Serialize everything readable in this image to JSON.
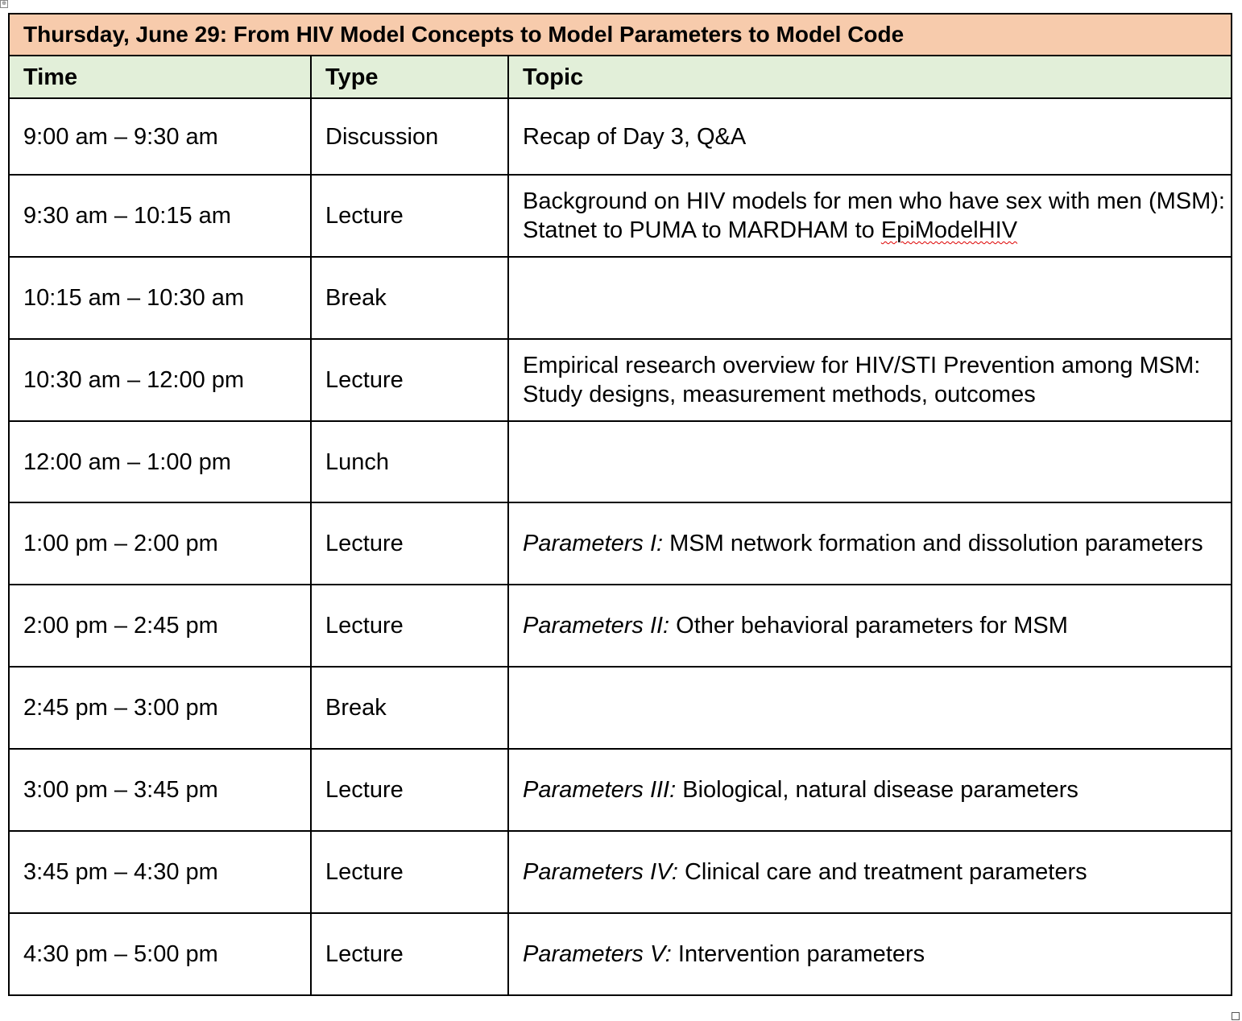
{
  "schedule": {
    "title": "Thursday, June 29: From HIV Model Concepts to Model Parameters to Model Code",
    "headers": {
      "time": "Time",
      "type": "Type",
      "topic": "Topic"
    },
    "rows": [
      {
        "time": "9:00 am – 9:30 am",
        "type": "Discussion",
        "topic_prefix": "",
        "topic": "Recap of Day 3, Q&A"
      },
      {
        "time": "9:30 am – 10:15 am",
        "type": "Lecture",
        "topic_prefix": "",
        "topic": "Background on HIV models for men who have sex with men (MSM): Statnet to PUMA to MARDHAM to ",
        "topic_flagged_word": "EpiModelHIV"
      },
      {
        "time": "10:15 am – 10:30 am",
        "type": "Break",
        "topic_prefix": "",
        "topic": ""
      },
      {
        "time": "10:30 am – 12:00 pm",
        "type": "Lecture",
        "topic_prefix": "",
        "topic": "Empirical research overview for HIV/STI Prevention among MSM: Study designs, measurement methods, outcomes"
      },
      {
        "time": "12:00 am – 1:00 pm",
        "type": "Lunch",
        "topic_prefix": "",
        "topic": ""
      },
      {
        "time": "1:00 pm – 2:00 pm",
        "type": "Lecture",
        "topic_prefix": "Parameters I:",
        "topic": " MSM network formation and dissolution parameters"
      },
      {
        "time": "2:00 pm – 2:45 pm",
        "type": "Lecture",
        "topic_prefix": "Parameters II:",
        "topic": " Other behavioral parameters for MSM"
      },
      {
        "time": "2:45 pm – 3:00 pm",
        "type": "Break",
        "topic_prefix": "",
        "topic": ""
      },
      {
        "time": "3:00 pm – 3:45 pm",
        "type": "Lecture",
        "topic_prefix": "Parameters III:",
        "topic": " Biological, natural disease parameters"
      },
      {
        "time": "3:45 pm – 4:30 pm",
        "type": "Lecture",
        "topic_prefix": "Parameters IV:",
        "topic": " Clinical care and treatment parameters"
      },
      {
        "time": "4:30 pm – 5:00 pm",
        "type": "Lecture",
        "topic_prefix": "Parameters V:",
        "topic": " Intervention parameters"
      }
    ]
  },
  "handles": {
    "move_glyph": "⊕"
  },
  "colors": {
    "title_background": "#f7cbac",
    "header_background": "#e2efd9",
    "spellcheck_underline": "#d00000"
  }
}
